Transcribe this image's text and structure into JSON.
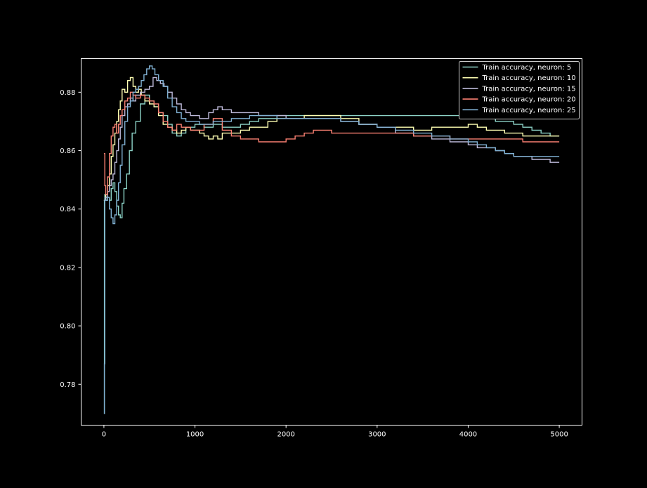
{
  "chart_data": {
    "type": "line",
    "title": "",
    "xlabel": "",
    "ylabel": "",
    "xlim": [
      -250,
      5250
    ],
    "ylim": [
      0.766,
      0.8915
    ],
    "x_ticks": [
      0,
      1000,
      2000,
      3000,
      4000,
      5000
    ],
    "x_tick_labels": [
      "0",
      "1000",
      "2000",
      "3000",
      "4000",
      "5000"
    ],
    "y_ticks": [
      0.78,
      0.8,
      0.82,
      0.84,
      0.86,
      0.88
    ],
    "y_tick_labels": [
      "0.78",
      "0.80",
      "0.82",
      "0.84",
      "0.86",
      "0.88"
    ],
    "grid": false,
    "legend_position": "top-right",
    "background": "#000000",
    "axes_color": "#ffffff",
    "series": [
      {
        "name": "Train accuracy, neuron: 5",
        "color": "#8dd3c7",
        "x": [
          0,
          5,
          10,
          20,
          40,
          60,
          80,
          100,
          120,
          140,
          160,
          180,
          200,
          220,
          250,
          280,
          310,
          350,
          400,
          450,
          500,
          550,
          600,
          650,
          700,
          750,
          800,
          850,
          900,
          1000,
          1100,
          1200,
          1300,
          1400,
          1500,
          1600,
          1700,
          1800,
          1900,
          2000,
          2200,
          2400,
          2600,
          2800,
          3000,
          3200,
          3400,
          3600,
          3800,
          4000,
          4100,
          4200,
          4300,
          4400,
          4500,
          4600,
          4700,
          4800,
          4900,
          5000
        ],
        "y": [
          0.77,
          0.843,
          0.845,
          0.843,
          0.844,
          0.843,
          0.847,
          0.849,
          0.846,
          0.841,
          0.838,
          0.837,
          0.842,
          0.847,
          0.852,
          0.86,
          0.866,
          0.87,
          0.876,
          0.879,
          0.877,
          0.875,
          0.873,
          0.872,
          0.869,
          0.866,
          0.865,
          0.866,
          0.868,
          0.869,
          0.868,
          0.869,
          0.868,
          0.868,
          0.869,
          0.87,
          0.871,
          0.871,
          0.872,
          0.872,
          0.872,
          0.872,
          0.872,
          0.872,
          0.872,
          0.872,
          0.872,
          0.872,
          0.872,
          0.872,
          0.871,
          0.871,
          0.87,
          0.87,
          0.869,
          0.868,
          0.867,
          0.866,
          0.865,
          0.865
        ]
      },
      {
        "name": "Train accuracy, neuron: 10",
        "color": "#ffffb3",
        "x": [
          0,
          20,
          40,
          60,
          80,
          100,
          120,
          140,
          160,
          180,
          200,
          230,
          260,
          290,
          320,
          350,
          380,
          410,
          450,
          500,
          550,
          600,
          650,
          700,
          750,
          800,
          850,
          900,
          950,
          1000,
          1050,
          1100,
          1150,
          1200,
          1250,
          1300,
          1400,
          1500,
          1600,
          1700,
          1800,
          1900,
          2000,
          2200,
          2400,
          2600,
          2800,
          3000,
          3200,
          3400,
          3600,
          3800,
          4000,
          4100,
          4200,
          4300,
          4400,
          4500,
          4600,
          4700,
          4800,
          4900,
          5000
        ],
        "y": [
          0.843,
          0.845,
          0.848,
          0.852,
          0.858,
          0.862,
          0.866,
          0.87,
          0.874,
          0.877,
          0.881,
          0.88,
          0.884,
          0.885,
          0.882,
          0.88,
          0.881,
          0.879,
          0.877,
          0.876,
          0.875,
          0.872,
          0.869,
          0.868,
          0.867,
          0.866,
          0.867,
          0.868,
          0.867,
          0.867,
          0.866,
          0.865,
          0.864,
          0.865,
          0.864,
          0.866,
          0.866,
          0.867,
          0.868,
          0.868,
          0.87,
          0.871,
          0.871,
          0.872,
          0.872,
          0.871,
          0.869,
          0.868,
          0.868,
          0.867,
          0.868,
          0.868,
          0.869,
          0.868,
          0.867,
          0.867,
          0.866,
          0.866,
          0.865,
          0.865,
          0.865,
          0.865,
          0.865
        ]
      },
      {
        "name": "Train accuracy, neuron: 15",
        "color": "#bebada",
        "x": [
          0,
          20,
          40,
          60,
          80,
          100,
          120,
          140,
          160,
          180,
          200,
          230,
          260,
          290,
          320,
          350,
          400,
          450,
          500,
          540,
          580,
          620,
          660,
          700,
          750,
          800,
          850,
          900,
          950,
          1000,
          1050,
          1100,
          1150,
          1200,
          1250,
          1300,
          1400,
          1500,
          1600,
          1700,
          1800,
          1900,
          2000,
          2200,
          2400,
          2600,
          2800,
          3000,
          3200,
          3400,
          3600,
          3800,
          4000,
          4100,
          4200,
          4300,
          4400,
          4500,
          4600,
          4700,
          4800,
          4900,
          5000
        ],
        "y": [
          0.843,
          0.844,
          0.846,
          0.848,
          0.85,
          0.852,
          0.856,
          0.86,
          0.864,
          0.868,
          0.872,
          0.875,
          0.876,
          0.878,
          0.877,
          0.879,
          0.88,
          0.881,
          0.882,
          0.885,
          0.884,
          0.883,
          0.882,
          0.88,
          0.878,
          0.876,
          0.874,
          0.873,
          0.872,
          0.872,
          0.871,
          0.871,
          0.873,
          0.874,
          0.875,
          0.874,
          0.873,
          0.873,
          0.873,
          0.872,
          0.872,
          0.872,
          0.871,
          0.871,
          0.871,
          0.87,
          0.869,
          0.868,
          0.866,
          0.865,
          0.864,
          0.863,
          0.862,
          0.861,
          0.861,
          0.86,
          0.859,
          0.858,
          0.858,
          0.857,
          0.857,
          0.856,
          0.856
        ]
      },
      {
        "name": "Train accuracy, neuron: 20",
        "color": "#fb8072",
        "x": [
          0,
          10,
          20,
          40,
          60,
          80,
          100,
          120,
          140,
          160,
          180,
          200,
          230,
          260,
          290,
          320,
          350,
          400,
          450,
          500,
          550,
          600,
          650,
          700,
          750,
          800,
          850,
          900,
          950,
          1000,
          1100,
          1200,
          1300,
          1400,
          1500,
          1600,
          1700,
          1800,
          1900,
          2000,
          2100,
          2200,
          2300,
          2400,
          2500,
          2600,
          2800,
          3000,
          3200,
          3400,
          3600,
          3800,
          4000,
          4100,
          4200,
          4300,
          4400,
          4500,
          4600,
          4700,
          4800,
          4900,
          5000
        ],
        "y": [
          0.859,
          0.848,
          0.845,
          0.851,
          0.859,
          0.865,
          0.868,
          0.869,
          0.866,
          0.869,
          0.872,
          0.874,
          0.877,
          0.878,
          0.88,
          0.879,
          0.878,
          0.879,
          0.878,
          0.877,
          0.876,
          0.873,
          0.87,
          0.868,
          0.867,
          0.869,
          0.868,
          0.868,
          0.867,
          0.867,
          0.869,
          0.871,
          0.867,
          0.865,
          0.864,
          0.864,
          0.863,
          0.863,
          0.863,
          0.864,
          0.865,
          0.866,
          0.867,
          0.867,
          0.866,
          0.866,
          0.866,
          0.866,
          0.866,
          0.865,
          0.865,
          0.864,
          0.864,
          0.864,
          0.864,
          0.864,
          0.864,
          0.864,
          0.863,
          0.863,
          0.863,
          0.863,
          0.863
        ]
      },
      {
        "name": "Train accuracy, neuron: 25",
        "color": "#80b1d3",
        "x": [
          0,
          5,
          10,
          20,
          40,
          60,
          80,
          100,
          120,
          140,
          160,
          180,
          200,
          230,
          260,
          290,
          320,
          350,
          380,
          410,
          440,
          470,
          500,
          530,
          560,
          600,
          650,
          700,
          750,
          800,
          850,
          900,
          950,
          1000,
          1050,
          1100,
          1200,
          1300,
          1400,
          1500,
          1600,
          1700,
          1800,
          1900,
          2000,
          2200,
          2400,
          2600,
          2800,
          3000,
          3200,
          3400,
          3600,
          3800,
          4000,
          4100,
          4200,
          4300,
          4400,
          4500,
          4600,
          4700,
          4800,
          4900,
          5000
        ],
        "y": [
          0.77,
          0.787,
          0.843,
          0.843,
          0.844,
          0.84,
          0.837,
          0.835,
          0.838,
          0.843,
          0.849,
          0.855,
          0.862,
          0.87,
          0.875,
          0.877,
          0.88,
          0.881,
          0.882,
          0.884,
          0.886,
          0.888,
          0.889,
          0.888,
          0.886,
          0.884,
          0.882,
          0.878,
          0.875,
          0.873,
          0.871,
          0.87,
          0.87,
          0.87,
          0.869,
          0.869,
          0.87,
          0.87,
          0.871,
          0.871,
          0.872,
          0.872,
          0.872,
          0.871,
          0.871,
          0.871,
          0.871,
          0.87,
          0.869,
          0.868,
          0.867,
          0.866,
          0.865,
          0.864,
          0.863,
          0.862,
          0.861,
          0.86,
          0.859,
          0.858,
          0.858,
          0.858,
          0.858,
          0.858,
          0.858
        ]
      }
    ]
  }
}
